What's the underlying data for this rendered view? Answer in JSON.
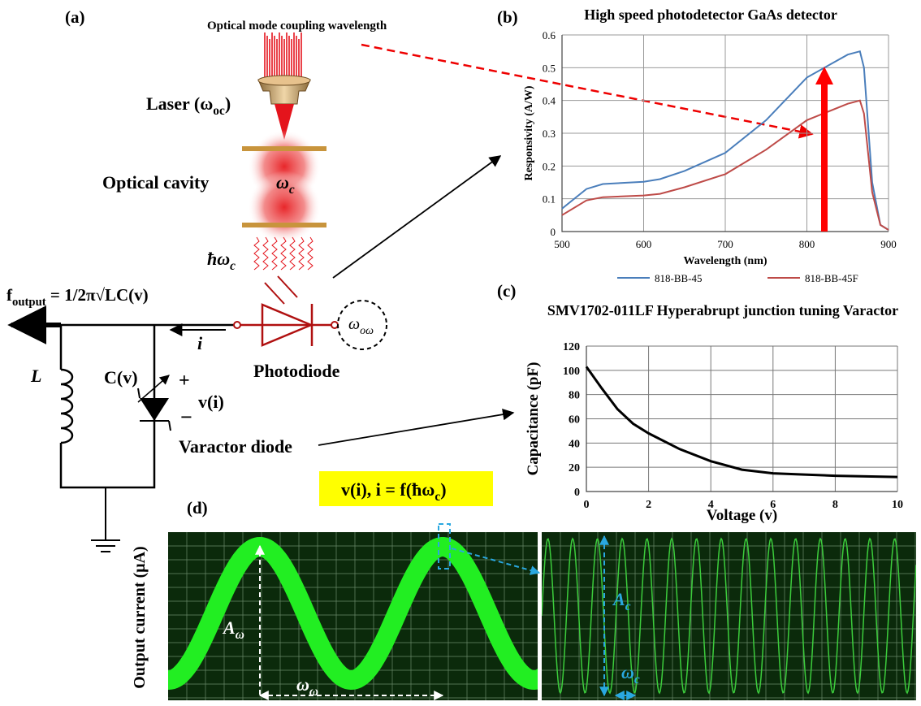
{
  "panel_labels": [
    "(a)",
    "(b)",
    "(c)",
    "(d)"
  ],
  "diagram": {
    "coupling": "Optical mode coupling wavelength",
    "laser": [
      {
        "text": "Laser (ω",
        "sub": "oc"
      },
      {
        "text": ")"
      }
    ],
    "cavity": "Optical  cavity",
    "omega_c": [
      {
        "text": "ω",
        "sub": "c"
      }
    ],
    "hbar": [
      {
        "text": "ħω",
        "sub": "c"
      }
    ],
    "f_output": [
      {
        "text": "f",
        "sub": "output"
      },
      {
        "text": " = 1/2π√LC(v)"
      }
    ],
    "current": "i",
    "inductor": "L",
    "capacitor": "C(v)",
    "plus": "+",
    "voltage": "v(i)",
    "minus": "−",
    "photodiode": "Photodiode",
    "omega_oo": [
      {
        "text": "ω",
        "sub": "oω"
      }
    ],
    "varactor": "Varactor diode",
    "relation": [
      {
        "text": "v(i), i = f(ħω",
        "sub": "c"
      },
      {
        "text": ")"
      }
    ],
    "scope_ylabel": "Output current (μA)",
    "amp_w": [
      {
        "text": "A",
        "sub": "ω"
      }
    ],
    "period_w": [
      {
        "text": "ω",
        "sub": "ω"
      }
    ],
    "amp_c": [
      {
        "text": "A",
        "sub": "c"
      }
    ],
    "period_c": [
      {
        "text": "ω",
        "sub": "c"
      }
    ]
  },
  "chart_data": [
    {
      "type": "line",
      "title": "High  speed photodetector GaAs  detector",
      "xlabel": "Wavelength (nm)",
      "ylabel": "Responsivity (A/W)",
      "x": [
        500,
        520,
        530,
        550,
        600,
        620,
        650,
        700,
        750,
        800,
        850,
        865,
        870,
        880,
        890,
        900
      ],
      "series": [
        {
          "name": "818-BB-45",
          "color": "#4a7ebb",
          "values": [
            0.07,
            0.11,
            0.13,
            0.145,
            0.152,
            0.16,
            0.185,
            0.24,
            0.34,
            0.47,
            0.54,
            0.55,
            0.5,
            0.15,
            0.02,
            0.005
          ]
        },
        {
          "name": "818-BB-45F",
          "color": "#be4b48",
          "values": [
            0.05,
            0.08,
            0.095,
            0.105,
            0.11,
            0.115,
            0.135,
            0.175,
            0.25,
            0.34,
            0.39,
            0.4,
            0.36,
            0.12,
            0.02,
            0.005
          ]
        }
      ],
      "xlim": [
        500,
        900
      ],
      "xticks": [
        500,
        600,
        700,
        800,
        900
      ],
      "ylim": [
        0,
        0.6
      ],
      "yticks": [
        0,
        0.1,
        0.2,
        0.3,
        0.4,
        0.5,
        0.6
      ],
      "grid": true,
      "legend": "bottom"
    },
    {
      "type": "line",
      "title": "SMV1702-011LF Hyperabrupt junction tuning Varactor",
      "xlabel": "Voltage (v)",
      "ylabel": "Capacitance (pF)",
      "x": [
        0,
        0.5,
        1,
        1.5,
        2,
        3,
        4,
        5,
        6,
        7,
        8,
        9,
        10
      ],
      "series": [
        {
          "color": "#000000",
          "values": [
            103,
            85,
            68,
            56,
            48,
            35,
            25,
            18,
            15,
            14,
            13,
            12.5,
            12
          ]
        }
      ],
      "xlim": [
        0,
        10
      ],
      "xticks": [
        0,
        2,
        4,
        6,
        8,
        10
      ],
      "ylim": [
        0,
        120
      ],
      "yticks": [
        0,
        20,
        40,
        60,
        80,
        100,
        120
      ],
      "grid": true
    }
  ]
}
